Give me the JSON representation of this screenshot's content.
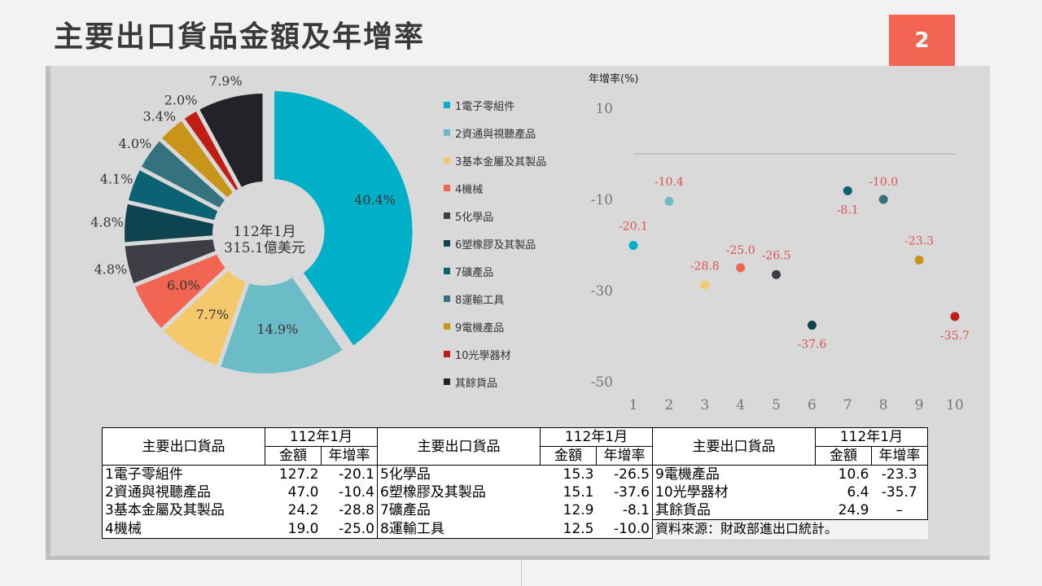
{
  "page": {
    "title": "主要出口貨品金額及年增率",
    "page_number": "2"
  },
  "donut": {
    "center_line1": "112年1月",
    "center_line2": "315.1億美元"
  },
  "chart_data": [
    {
      "type": "pie",
      "variant": "donut",
      "categories": [
        "1電子零組件",
        "2資通與視聽產品",
        "3基本金屬及其製品",
        "4機械",
        "5化學品",
        "6塑橡膠及其製品",
        "7礦產品",
        "8運輸工具",
        "9電機產品",
        "10光學器材",
        "其餘貨品"
      ],
      "values": [
        40.4,
        14.9,
        7.7,
        6.0,
        4.8,
        4.8,
        4.1,
        4.0,
        3.4,
        2.0,
        7.9
      ],
      "labels": [
        "40.4%",
        "14.9%",
        "7.7%",
        "6.0%",
        "4.8%",
        "4.8%",
        "4.1%",
        "4.0%",
        "3.4%",
        "2.0%",
        "7.9%"
      ],
      "colors": [
        "#00b0c8",
        "#6cbcc8",
        "#f5c96b",
        "#f26552",
        "#3d3d45",
        "#0e4450",
        "#0b6272",
        "#34727e",
        "#c8941a",
        "#c01e14",
        "#222228"
      ],
      "legend": "right",
      "title": ""
    },
    {
      "type": "scatter",
      "title": "",
      "ylabel": "年增率(%)",
      "xlabel": "",
      "x": [
        1,
        2,
        3,
        4,
        5,
        6,
        7,
        8,
        9,
        10
      ],
      "y": [
        -20.1,
        -10.4,
        -28.8,
        -25.0,
        -26.5,
        -37.6,
        -8.1,
        -10.0,
        -23.3,
        -35.7
      ],
      "point_labels": [
        "-20.1",
        "-10.4",
        "-28.8",
        "-25.0",
        "-26.5",
        "-37.6",
        "-8.1",
        "-10.0",
        "-23.3",
        "-35.7"
      ],
      "colors": [
        "#00b0c8",
        "#6cbcc8",
        "#f5c96b",
        "#f26552",
        "#3d3d45",
        "#0e4450",
        "#0b6272",
        "#34727e",
        "#c8941a",
        "#c01e14"
      ],
      "label_color": "#e05050",
      "ylim": [
        -50,
        10
      ],
      "yticks": [
        10,
        -10,
        -30,
        -50
      ],
      "xlim": [
        1,
        10
      ],
      "xticks": [
        1,
        2,
        3,
        4,
        5,
        6,
        7,
        8,
        9,
        10
      ],
      "zero_line": true,
      "grid": false
    },
    {
      "type": "table",
      "headers": {
        "item": "主要出口貨品",
        "period": "112年1月",
        "amount": "金額",
        "growth": "年增率"
      },
      "rows": [
        [
          {
            "name": "1電子零組件",
            "amount": "127.2",
            "growth": "-20.1"
          },
          {
            "name": "5化學品",
            "amount": "15.3",
            "growth": "-26.5"
          },
          {
            "name": "9電機產品",
            "amount": "10.6",
            "growth": "-23.3"
          }
        ],
        [
          {
            "name": "2資通與視聽產品",
            "amount": "47.0",
            "growth": "-10.4"
          },
          {
            "name": "6塑橡膠及其製品",
            "amount": "15.1",
            "growth": "-37.6"
          },
          {
            "name": "10光學器材",
            "amount": "6.4",
            "growth": "-35.7"
          }
        ],
        [
          {
            "name": "3基本金屬及其製品",
            "amount": "24.2",
            "growth": "-28.8"
          },
          {
            "name": "7礦產品",
            "amount": "12.9",
            "growth": "-8.1"
          },
          {
            "name": "其餘貨品",
            "amount": "24.9",
            "growth": "–"
          }
        ],
        [
          {
            "name": "4機械",
            "amount": "19.0",
            "growth": "-25.0"
          },
          {
            "name": "8運輸工具",
            "amount": "12.5",
            "growth": "-10.0"
          },
          {
            "note": "資料來源：財政部進出口統計。"
          }
        ]
      ]
    }
  ]
}
